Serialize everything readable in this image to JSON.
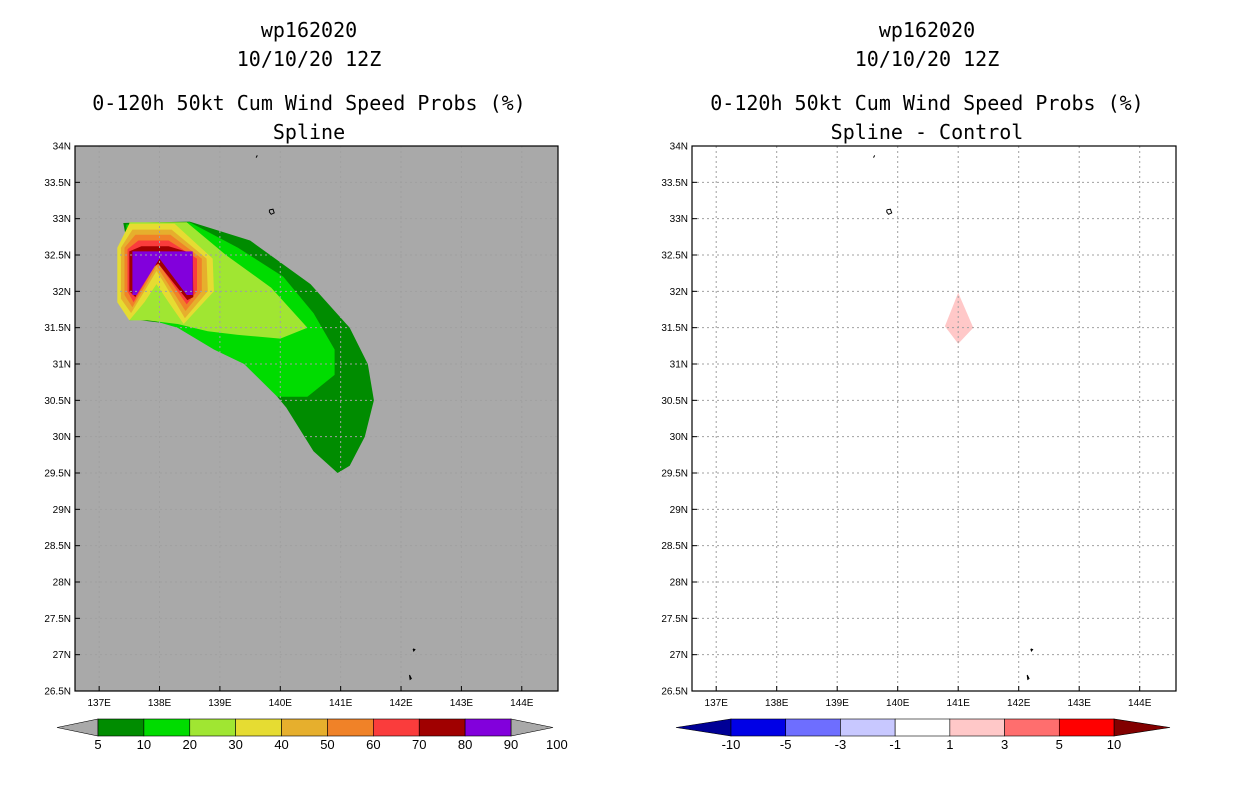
{
  "colors": {
    "background": "#ffffff",
    "left_panel_bg": "#a9a9a9",
    "grid": "#a0a0a0",
    "coast": "#000000"
  },
  "chart_data": [
    {
      "type": "filled-contour-map",
      "title_lines": [
        "wp162020",
        "10/10/20 12Z",
        "0-120h 50kt Cum Wind Speed Probs (%)",
        "Spline"
      ],
      "x_range": [
        136.6,
        144.6
      ],
      "y_range": [
        26.5,
        34
      ],
      "x_ticks": [
        137,
        138,
        139,
        140,
        141,
        142,
        143,
        144
      ],
      "x_tick_labels": [
        "137E",
        "138E",
        "139E",
        "140E",
        "141E",
        "142E",
        "143E",
        "144E"
      ],
      "y_ticks": [
        26.5,
        27,
        27.5,
        28,
        28.5,
        29,
        29.5,
        30,
        30.5,
        31,
        31.5,
        32,
        32.5,
        33,
        33.5,
        34
      ],
      "y_tick_labels": [
        "26.5N",
        "27N",
        "27.5N",
        "28N",
        "28.5N",
        "29N",
        "29.5N",
        "30N",
        "30.5N",
        "31N",
        "31.5N",
        "32N",
        "32.5N",
        "33N",
        "33.5N",
        "34N"
      ],
      "colorbar": {
        "levels": [
          "5",
          "10",
          "20",
          "30",
          "40",
          "50",
          "60",
          "70",
          "80",
          "90",
          "100"
        ],
        "colors": [
          "#008c00",
          "#00dc00",
          "#a0e632",
          "#e6dc32",
          "#e6af2d",
          "#f08228",
          "#fa3c3c",
          "#a00000",
          "#8200dc"
        ],
        "end_colors": [
          "#a9a9a9",
          "#a9a9a9"
        ]
      },
      "regions": [
        {
          "level": "5-10",
          "color": "#008c00",
          "points": [
            [
              137.4,
              32.94
            ],
            [
              138.5,
              32.96
            ],
            [
              139.5,
              32.7
            ],
            [
              140.5,
              32.1
            ],
            [
              141.15,
              31.5
            ],
            [
              141.45,
              31.0
            ],
            [
              141.55,
              30.5
            ],
            [
              141.4,
              30.0
            ],
            [
              141.15,
              29.6
            ],
            [
              140.95,
              29.5
            ],
            [
              140.55,
              29.8
            ],
            [
              140.1,
              30.4
            ],
            [
              139.7,
              30.8
            ],
            [
              139.35,
              31.05
            ],
            [
              138.8,
              31.3
            ],
            [
              138.2,
              31.55
            ],
            [
              137.7,
              31.6
            ]
          ]
        },
        {
          "level": "10-20",
          "color": "#00dc00",
          "points": [
            [
              137.45,
              32.92
            ],
            [
              138.5,
              32.95
            ],
            [
              139.3,
              32.6
            ],
            [
              140.05,
              32.2
            ],
            [
              140.55,
              31.7
            ],
            [
              140.9,
              31.2
            ],
            [
              140.9,
              30.85
            ],
            [
              140.45,
              30.55
            ],
            [
              139.95,
              30.55
            ],
            [
              139.4,
              31.0
            ],
            [
              138.9,
              31.2
            ],
            [
              138.3,
              31.5
            ],
            [
              137.8,
              31.62
            ],
            [
              137.5,
              31.6
            ]
          ]
        },
        {
          "level": "20-30",
          "color": "#a0e632",
          "points": [
            [
              137.5,
              32.95
            ],
            [
              138.45,
              32.95
            ],
            [
              139.1,
              32.5
            ],
            [
              139.85,
              32.05
            ],
            [
              140.45,
              31.5
            ],
            [
              140.0,
              31.35
            ],
            [
              139.3,
              31.4
            ],
            [
              138.8,
              31.45
            ],
            [
              138.3,
              31.55
            ],
            [
              137.8,
              31.6
            ],
            [
              137.5,
              31.6
            ]
          ]
        },
        {
          "level": "30-40",
          "color": "#e6dc32",
          "points": [
            [
              137.5,
              32.93
            ],
            [
              138.25,
              32.93
            ],
            [
              138.88,
              32.45
            ],
            [
              138.9,
              32.0
            ],
            [
              138.4,
              31.55
            ],
            [
              138.15,
              31.85
            ],
            [
              137.95,
              32.1
            ],
            [
              137.75,
              31.85
            ],
            [
              137.5,
              31.6
            ],
            [
              137.3,
              31.85
            ],
            [
              137.3,
              32.6
            ]
          ]
        },
        {
          "level": "40-50",
          "color": "#e6af2d",
          "points": [
            [
              137.55,
              32.85
            ],
            [
              138.2,
              32.85
            ],
            [
              138.78,
              32.45
            ],
            [
              138.8,
              32.0
            ],
            [
              138.42,
              31.63
            ],
            [
              138.05,
              32.15
            ],
            [
              137.95,
              32.28
            ],
            [
              137.75,
              32.0
            ],
            [
              137.53,
              31.7
            ],
            [
              137.36,
              31.9
            ],
            [
              137.36,
              32.6
            ]
          ]
        },
        {
          "level": "50-60",
          "color": "#f08228",
          "points": [
            [
              137.6,
              32.78
            ],
            [
              138.18,
              32.78
            ],
            [
              138.7,
              32.45
            ],
            [
              138.7,
              32.0
            ],
            [
              138.43,
              31.73
            ],
            [
              138.05,
              32.22
            ],
            [
              137.95,
              32.35
            ],
            [
              137.78,
              32.1
            ],
            [
              137.55,
              31.78
            ],
            [
              137.42,
              31.95
            ],
            [
              137.42,
              32.6
            ]
          ]
        },
        {
          "level": "60-70",
          "color": "#fa3c3c",
          "points": [
            [
              137.65,
              32.7
            ],
            [
              138.15,
              32.7
            ],
            [
              138.62,
              32.45
            ],
            [
              138.62,
              32.0
            ],
            [
              138.45,
              31.82
            ],
            [
              138.05,
              32.3
            ],
            [
              137.95,
              32.42
            ],
            [
              137.8,
              32.18
            ],
            [
              137.57,
              31.85
            ],
            [
              137.47,
              32.0
            ],
            [
              137.47,
              32.58
            ]
          ]
        },
        {
          "level": "70-80",
          "color": "#a00000",
          "points": [
            [
              137.7,
              32.62
            ],
            [
              138.15,
              32.62
            ],
            [
              138.55,
              32.52
            ],
            [
              138.56,
              31.92
            ],
            [
              138.46,
              31.88
            ],
            [
              137.98,
              32.38
            ],
            [
              137.8,
              32.28
            ],
            [
              137.6,
              31.92
            ],
            [
              137.5,
              32.0
            ],
            [
              137.5,
              32.55
            ]
          ]
        },
        {
          "level": "90-100",
          "color": "#8200dc",
          "points": [
            [
              137.55,
              32.55
            ],
            [
              138.55,
              32.55
            ],
            [
              138.55,
              31.95
            ],
            [
              138.45,
              31.95
            ],
            [
              138.0,
              32.45
            ],
            [
              137.62,
              31.95
            ],
            [
              137.55,
              31.95
            ]
          ]
        }
      ]
    },
    {
      "type": "filled-contour-map",
      "title_lines": [
        "wp162020",
        "10/10/20 12Z",
        "0-120h 50kt Cum Wind Speed Probs (%)",
        "Spline - Control"
      ],
      "x_range": [
        136.6,
        144.6
      ],
      "y_range": [
        26.5,
        34
      ],
      "x_ticks": [
        137,
        138,
        139,
        140,
        141,
        142,
        143,
        144
      ],
      "x_tick_labels": [
        "137E",
        "138E",
        "139E",
        "140E",
        "141E",
        "142E",
        "143E",
        "144E"
      ],
      "y_ticks": [
        26.5,
        27,
        27.5,
        28,
        28.5,
        29,
        29.5,
        30,
        30.5,
        31,
        31.5,
        32,
        32.5,
        33,
        33.5,
        34
      ],
      "y_tick_labels": [
        "26.5N",
        "27N",
        "27.5N",
        "28N",
        "28.5N",
        "29N",
        "29.5N",
        "30N",
        "30.5N",
        "31N",
        "31.5N",
        "32N",
        "32.5N",
        "33N",
        "33.5N",
        "34N"
      ],
      "colorbar": {
        "levels": [
          "-10",
          "-5",
          "-3",
          "-1",
          "1",
          "3",
          "5",
          "10"
        ],
        "colors": [
          "#0000e6",
          "#6e6eff",
          "#c8c8ff",
          "#ffffff",
          "#ffc8c8",
          "#ff6e6e",
          "#ff0000"
        ],
        "end_colors": [
          "#000096",
          "#820000"
        ]
      },
      "regions": [
        {
          "level": "1-3",
          "color": "#ffc8c8",
          "points": [
            [
              141.0,
              31.98
            ],
            [
              141.25,
              31.5
            ],
            [
              141.0,
              31.28
            ],
            [
              140.78,
              31.52
            ]
          ]
        }
      ]
    }
  ]
}
